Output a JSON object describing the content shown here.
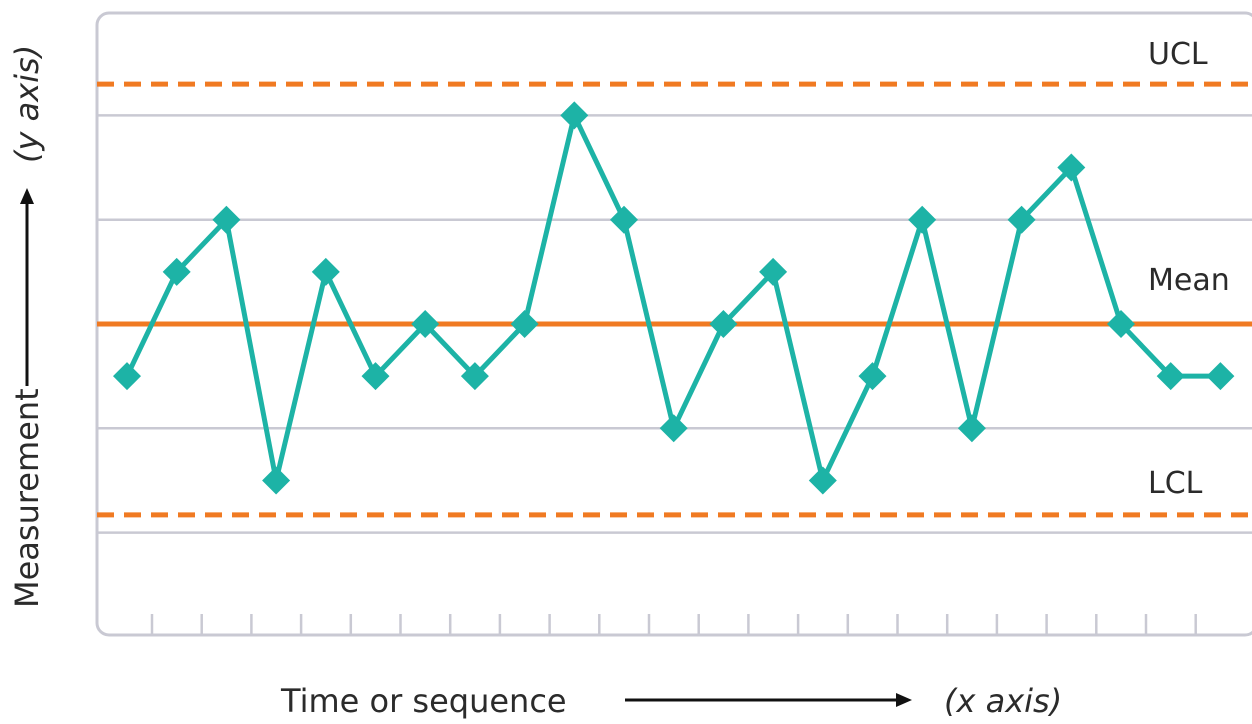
{
  "chart_data": {
    "type": "line",
    "chart_kind": "control chart",
    "xlabel_main": "Time or sequence",
    "xlabel_paren": "x axis",
    "ylabel_main": "Measurement",
    "ylabel_paren": "y axis",
    "ylim": [
      -4,
      3.5
    ],
    "y_gridlines": [
      -2,
      -1,
      1,
      2
    ],
    "x_count": 23,
    "x_tick_count": 22,
    "series": [
      {
        "values": [
          -0.5,
          0.5,
          1,
          -1.5,
          0.5,
          -0.5,
          0,
          -0.5,
          0,
          2,
          1,
          -1,
          0,
          0.5,
          -1.5,
          -0.5,
          1,
          -1,
          1,
          1.5,
          0,
          -0.5,
          -0.5
        ],
        "marker": "diamond"
      }
    ],
    "reference_lines": [
      {
        "label": "UCL",
        "value": 2.3,
        "style": "dashed"
      },
      {
        "label": "Mean",
        "value": 0,
        "style": "solid"
      },
      {
        "label": "LCL",
        "value": -1.83,
        "style": "dashed"
      }
    ],
    "colors": {
      "series": "#1db3a6",
      "control_lines": "#f07a22",
      "grid": "#c9c9d3",
      "frame": "#c9c9d3",
      "text": "#2b2b2b"
    },
    "grid": true,
    "legend": "none"
  }
}
